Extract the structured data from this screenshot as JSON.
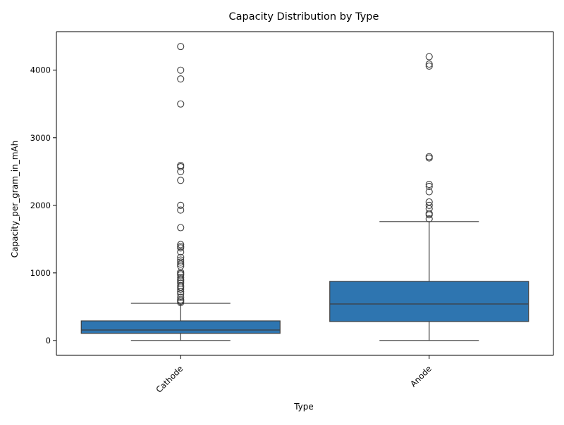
{
  "chart_data": {
    "type": "boxplot",
    "title": "Capacity Distribution by Type",
    "xlabel": "Type",
    "ylabel": "Capacity_per_gram_in_mAh",
    "ylim": [
      -220,
      4570
    ],
    "yticks": [
      0,
      1000,
      2000,
      3000,
      4000
    ],
    "grid": false,
    "box_color": "#2e75b0",
    "line_color": "#3f3f3f",
    "categories": [
      "Cathode",
      "Anode"
    ],
    "boxes": [
      {
        "category": "Cathode",
        "whisker_low": 0,
        "q1": 105,
        "median": 155,
        "q3": 290,
        "whisker_high": 550,
        "outliers": [
          4350,
          4000,
          3870,
          3500,
          2590,
          2570,
          2500,
          2370,
          2000,
          1930,
          1670,
          1420,
          1390,
          1370,
          1310,
          1230,
          1190,
          1160,
          1130,
          1100,
          1010,
          990,
          970,
          930,
          900,
          880,
          850,
          810,
          790,
          760,
          720,
          690,
          640,
          600,
          580,
          560
        ]
      },
      {
        "category": "Anode",
        "whisker_low": 0,
        "q1": 280,
        "median": 540,
        "q3": 875,
        "whisker_high": 1760,
        "outliers": [
          4200,
          4090,
          4060,
          2720,
          2700,
          2310,
          2280,
          2200,
          2050,
          2000,
          1950,
          1880,
          1860,
          1800
        ]
      }
    ]
  }
}
